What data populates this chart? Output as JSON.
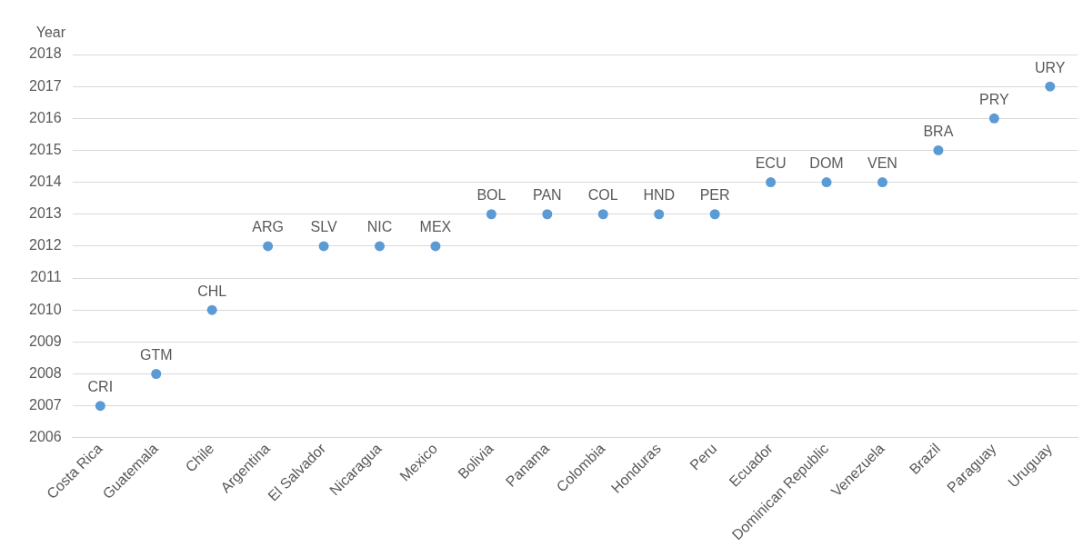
{
  "chart_data": {
    "type": "scatter",
    "ylabel": "Year",
    "categories": [
      "Costa Rica",
      "Guatemala",
      "Chile",
      "Argentina",
      "El Salvador",
      "Nicaragua",
      "Mexico",
      "Bolivia",
      "Panama",
      "Colombia",
      "Honduras",
      "Peru",
      "Ecuador",
      "Dominican Republic",
      "Venezuela",
      "Brazil",
      "Paraguay",
      "Uruguay"
    ],
    "values": [
      2007,
      2008,
      2010,
      2012,
      2012,
      2012,
      2012,
      2013,
      2013,
      2013,
      2013,
      2013,
      2014,
      2014,
      2014,
      2015,
      2016,
      2017
    ],
    "color": "#5b9bd5",
    "marker": "circle",
    "grid": "y",
    "legend": false,
    "ylim": [
      2006,
      2018
    ],
    "yticks": [
      2006,
      2007,
      2008,
      2009,
      2010,
      2011,
      2012,
      2013,
      2014,
      2015,
      2016,
      2017,
      2018
    ],
    "annotations": [
      {
        "text": "CRI",
        "x": "Costa Rica",
        "y": 2007
      },
      {
        "text": "GTM",
        "x": "Guatemala",
        "y": 2008
      },
      {
        "text": "CHL",
        "x": "Chile",
        "y": 2010
      },
      {
        "text": "ARG",
        "x": "Argentina",
        "y": 2012
      },
      {
        "text": "SLV",
        "x": "El Salvador",
        "y": 2012
      },
      {
        "text": "NIC",
        "x": "Nicaragua",
        "y": 2012
      },
      {
        "text": "MEX",
        "x": "Mexico",
        "y": 2012
      },
      {
        "text": "BOL",
        "x": "Bolivia",
        "y": 2013
      },
      {
        "text": "PAN",
        "x": "Panama",
        "y": 2013
      },
      {
        "text": "COL",
        "x": "Colombia",
        "y": 2013
      },
      {
        "text": "HND",
        "x": "Honduras",
        "y": 2013
      },
      {
        "text": "PER",
        "x": "Peru",
        "y": 2013
      },
      {
        "text": "ECU",
        "x": "Ecuador",
        "y": 2014
      },
      {
        "text": "DOM",
        "x": "Dominican Republic",
        "y": 2014
      },
      {
        "text": "VEN",
        "x": "Venezuela",
        "y": 2014
      },
      {
        "text": "BRA",
        "x": "Brazil",
        "y": 2015
      },
      {
        "text": "PRY",
        "x": "Paraguay",
        "y": 2016
      },
      {
        "text": "URY",
        "x": "Uruguay",
        "y": 2017
      }
    ]
  }
}
